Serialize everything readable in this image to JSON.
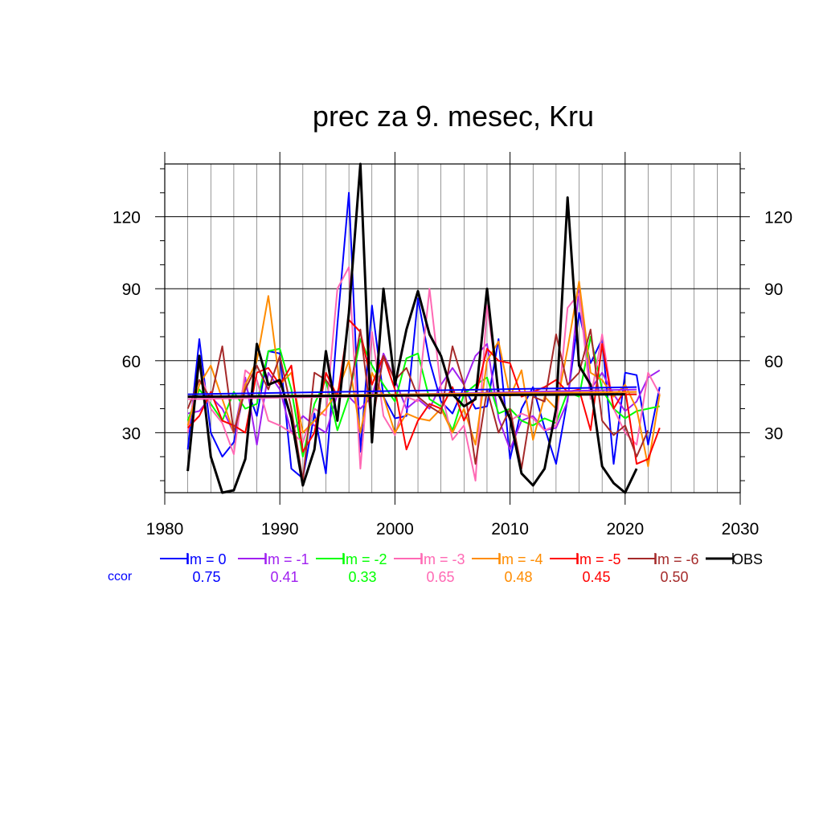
{
  "chart_data": {
    "type": "line",
    "title": "prec za 9. mesec, Kru",
    "xlim": [
      1980,
      2030
    ],
    "ylim": [
      5,
      142
    ],
    "x_ticks": [
      1980,
      1990,
      2000,
      2010,
      2020,
      2030
    ],
    "y_ticks": [
      30,
      60,
      90,
      120
    ],
    "grid": true,
    "legend_position": "bottom",
    "ccor_label": "ccor",
    "series": [
      {
        "name": "lm = 0",
        "color": "#0000ff",
        "ccor": "0.75",
        "x_start": 1982,
        "values": [
          23,
          69,
          30,
          20,
          26,
          50,
          37,
          64,
          63,
          15,
          11,
          38,
          13,
          75,
          130,
          22,
          83,
          45,
          36,
          37,
          86,
          60,
          43,
          38,
          49,
          40,
          41,
          69,
          19,
          40,
          49,
          32,
          17,
          44,
          80,
          59,
          69,
          17,
          55,
          54,
          25,
          49
        ],
        "trend": [
          [
            1982,
            46
          ],
          [
            2021,
            49
          ]
        ]
      },
      {
        "name": "lm = -1",
        "color": "#a020f0",
        "ccor": "0.41",
        "x_start": 1982,
        "values": [
          38,
          39,
          45,
          40,
          30,
          53,
          25,
          55,
          48,
          30,
          37,
          33,
          30,
          46,
          45,
          40,
          45,
          63,
          52,
          40,
          44,
          40,
          50,
          57,
          50,
          62,
          67,
          36,
          23,
          35,
          37,
          31,
          32,
          43,
          90,
          48,
          55,
          46,
          39,
          43,
          53,
          56
        ],
        "trend": [
          [
            1982,
            44
          ],
          [
            2021,
            48
          ]
        ]
      },
      {
        "name": "lm = -2",
        "color": "#00ff00",
        "ccor": "0.33",
        "x_start": 1982,
        "values": [
          35,
          48,
          42,
          35,
          47,
          40,
          42,
          64,
          65,
          48,
          20,
          42,
          52,
          31,
          45,
          69,
          58,
          50,
          43,
          61,
          63,
          44,
          41,
          31,
          46,
          50,
          53,
          38,
          40,
          35,
          33,
          36,
          34,
          47,
          45,
          70,
          48,
          40,
          36,
          39,
          40,
          41
        ],
        "trend": [
          [
            1982,
            45
          ],
          [
            2021,
            46
          ]
        ]
      },
      {
        "name": "lm = -3",
        "color": "#ff69b4",
        "ccor": "0.65",
        "x_start": 1982,
        "values": [
          30,
          58,
          40,
          34,
          21,
          56,
          52,
          35,
          33,
          30,
          26,
          40,
          37,
          90,
          99,
          15,
          72,
          37,
          29,
          45,
          43,
          90,
          48,
          27,
          33,
          10,
          83,
          48,
          35,
          38,
          36,
          31,
          33,
          82,
          88,
          44,
          71,
          40,
          30,
          25,
          55,
          46
        ],
        "trend": [
          [
            1982,
            44
          ],
          [
            2021,
            47
          ]
        ]
      },
      {
        "name": "lm = -4",
        "color": "#ff8c00",
        "ccor": "0.48",
        "x_start": 1982,
        "values": [
          33,
          50,
          58,
          44,
          30,
          50,
          60,
          87,
          50,
          55,
          30,
          35,
          40,
          47,
          60,
          30,
          55,
          45,
          30,
          38,
          36,
          35,
          40,
          30,
          40,
          25,
          60,
          68,
          45,
          56,
          27,
          45,
          40,
          65,
          93,
          55,
          52,
          45,
          50,
          40,
          16,
          46
        ],
        "trend": [
          [
            1982,
            45
          ],
          [
            2021,
            47
          ]
        ]
      },
      {
        "name": "lm = -5",
        "color": "#ff0000",
        "ccor": "0.45",
        "x_start": 1982,
        "values": [
          32,
          37,
          47,
          35,
          33,
          30,
          55,
          57,
          50,
          58,
          22,
          30,
          55,
          45,
          77,
          72,
          50,
          62,
          48,
          23,
          35,
          42,
          40,
          49,
          35,
          45,
          65,
          60,
          59,
          45,
          47,
          49,
          52,
          47,
          48,
          31,
          67,
          40,
          48,
          17,
          19,
          32
        ],
        "trend": [
          [
            1982,
            45
          ],
          [
            2021,
            46
          ]
        ]
      },
      {
        "name": "lm = -6",
        "color": "#a52a2a",
        "ccor": "0.50",
        "x_start": 1982,
        "values": [
          40,
          52,
          44,
          66,
          30,
          48,
          58,
          48,
          62,
          40,
          10,
          55,
          52,
          45,
          45,
          73,
          33,
          62,
          52,
          57,
          45,
          41,
          38,
          66,
          50,
          17,
          48,
          30,
          40,
          15,
          45,
          43,
          71,
          50,
          55,
          73,
          35,
          29,
          33,
          20,
          31
        ],
        "trend": [
          [
            1982,
            45
          ],
          [
            2020,
            46
          ]
        ]
      },
      {
        "name": "OBS",
        "color": "#000000",
        "ccor": "",
        "x_start": 1982,
        "values": [
          14,
          62,
          20,
          5,
          6,
          19,
          67,
          50,
          52,
          36,
          8,
          23,
          64,
          35,
          80,
          142,
          26,
          90,
          50,
          73,
          89,
          71,
          62,
          46,
          41,
          44,
          90,
          46,
          36,
          13,
          8,
          15,
          40,
          128,
          58,
          50,
          16,
          9,
          5,
          15
        ],
        "trend": [
          [
            1982,
            45
          ],
          [
            2020,
            46
          ]
        ]
      }
    ]
  }
}
